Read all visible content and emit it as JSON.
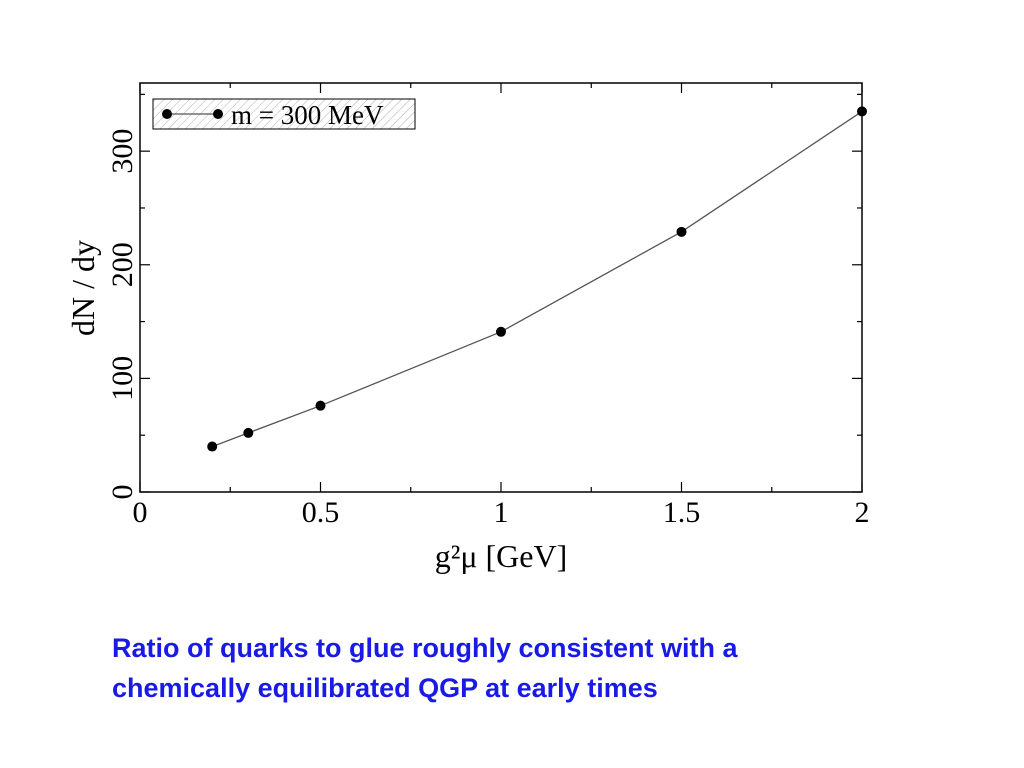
{
  "chart_data": {
    "type": "line",
    "xlabel": "g²μ [GeV]",
    "ylabel": "dN / dy",
    "xlim": [
      0,
      2
    ],
    "ylim": [
      0,
      360
    ],
    "x_ticks": [
      0,
      0.5,
      1,
      1.5,
      2
    ],
    "x_tick_labels": [
      "0",
      "0.5",
      "1",
      "1.5",
      "2"
    ],
    "y_ticks": [
      0,
      100,
      200,
      300
    ],
    "y_tick_labels": [
      "0",
      "100",
      "200",
      "300"
    ],
    "x_minor_step": 0.25,
    "y_minor_step": 50,
    "grid": false,
    "legend_position": "top-left",
    "series": [
      {
        "name": "m = 300 MeV",
        "color": "#000000",
        "marker": "circle",
        "x": [
          0.2,
          0.3,
          0.5,
          1.0,
          1.5,
          2.0
        ],
        "y": [
          40,
          52,
          76,
          141,
          229,
          335
        ]
      }
    ]
  },
  "caption": {
    "line1": "Ratio of quarks to glue roughly consistent with a",
    "line2": "chemically equilibrated QGP at early times"
  }
}
